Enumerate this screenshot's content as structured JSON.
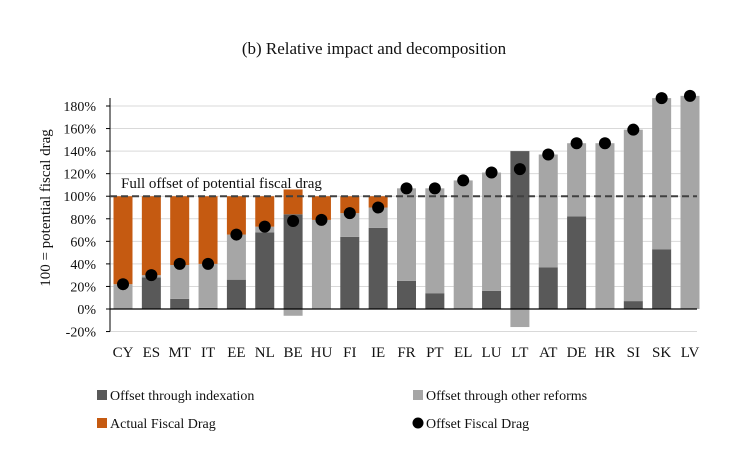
{
  "chart_data": {
    "type": "bar",
    "stacked": true,
    "title": "(b) Relative impact and decomposition",
    "ylabel": "100 = potential fiscal drag",
    "ylim": [
      -20,
      180
    ],
    "yticks": [
      "-20%",
      "0%",
      "20%",
      "40%",
      "60%",
      "80%",
      "100%",
      "120%",
      "140%",
      "160%",
      "180%"
    ],
    "grid": true,
    "legend_position": "bottom",
    "reference_line": {
      "value": 100,
      "label": "Full offset of potential fiscal drag"
    },
    "categories": [
      "CY",
      "ES",
      "MT",
      "IT",
      "EE",
      "NL",
      "BE",
      "HU",
      "FI",
      "IE",
      "FR",
      "PT",
      "EL",
      "LU",
      "LT",
      "AT",
      "DE",
      "HR",
      "SI",
      "SK",
      "LV"
    ],
    "series": [
      {
        "name": "Offset through indexation",
        "kind": "bar",
        "color": "#595959",
        "values": [
          0,
          28,
          9,
          1,
          26,
          68,
          84,
          0,
          64,
          72,
          25,
          14,
          0,
          16,
          140,
          37,
          82,
          0,
          7,
          53,
          0
        ]
      },
      {
        "name": "Offset through other reforms",
        "kind": "bar",
        "color": "#a6a6a6",
        "values": [
          22,
          2,
          30,
          39,
          40,
          5,
          -6,
          79,
          21,
          18,
          82,
          93,
          114,
          105,
          -16,
          100,
          65,
          147,
          152,
          134,
          189
        ]
      },
      {
        "name": "Actual Fiscal Drag",
        "kind": "bar",
        "color": "#c55a11",
        "values": [
          78,
          70,
          61,
          60,
          34,
          27,
          22,
          21,
          15,
          10,
          0,
          0,
          0,
          0,
          0,
          0,
          0,
          0,
          0,
          0,
          0
        ]
      },
      {
        "name": "Offset Fiscal Drag",
        "kind": "dot",
        "color": "#000000",
        "values": [
          22,
          30,
          40,
          40,
          66,
          73,
          78,
          79,
          85,
          90,
          107,
          107,
          114,
          121,
          124,
          137,
          147,
          147,
          159,
          187,
          189
        ]
      }
    ]
  }
}
